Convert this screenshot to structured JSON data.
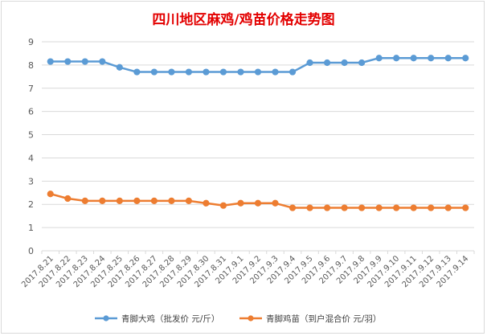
{
  "chart_data": {
    "type": "line",
    "title": "四川地区麻鸡/鸡苗价格走势图",
    "categories": [
      "2017.8.21",
      "2017.8.22",
      "2017.8.23",
      "2017.8.24",
      "2017.8.25",
      "2017.8.26",
      "2017.8.27",
      "2017.8.28",
      "2017.8.29",
      "2017.8.30",
      "2017.8.31",
      "2017.9.1",
      "2017.9.2",
      "2017.9.3",
      "2017.9.4",
      "2017.9.5",
      "2017.9.6",
      "2017.9.7",
      "2017.9.8",
      "2017.9.9",
      "2017.9.10",
      "2017.9.11",
      "2017.9.12",
      "2017.9.13",
      "2017.9.14"
    ],
    "ylim": [
      0,
      9
    ],
    "yticks": [
      0,
      1,
      2,
      3,
      4,
      5,
      6,
      7,
      8,
      9
    ],
    "grid": true,
    "legend_position": "bottom",
    "series": [
      {
        "name": "青脚大鸡（批发价 元/斤）",
        "color": "#5b9bd5",
        "values": [
          8.15,
          8.15,
          8.15,
          8.15,
          7.9,
          7.7,
          7.7,
          7.7,
          7.7,
          7.7,
          7.7,
          7.7,
          7.7,
          7.7,
          7.7,
          8.1,
          8.1,
          8.1,
          8.1,
          8.3,
          8.3,
          8.3,
          8.3,
          8.3,
          8.3
        ]
      },
      {
        "name": "青脚鸡苗（到户混合价 元/羽）",
        "color": "#ed7d31",
        "values": [
          2.45,
          2.25,
          2.15,
          2.15,
          2.15,
          2.15,
          2.15,
          2.15,
          2.15,
          2.05,
          1.95,
          2.05,
          2.05,
          2.05,
          1.85,
          1.85,
          1.85,
          1.85,
          1.85,
          1.85,
          1.85,
          1.85,
          1.85,
          1.85,
          1.85
        ]
      }
    ]
  }
}
